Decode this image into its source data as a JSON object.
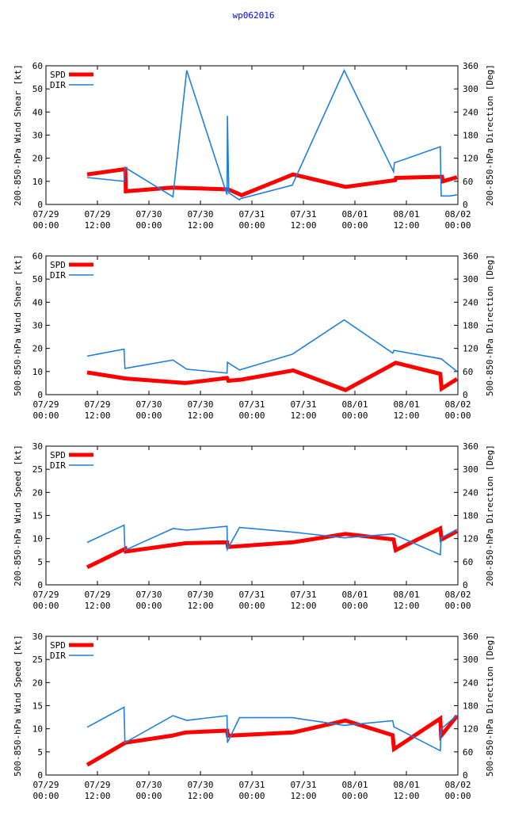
{
  "page_title": "wp062016",
  "colors": {
    "spd": "#ff0000",
    "dir": "#1e7fe0",
    "title": "#0000ff",
    "axis": "#000000"
  },
  "x_ticks": [
    {
      "date": "07/29",
      "time": "00:00"
    },
    {
      "date": "07/29",
      "time": "12:00"
    },
    {
      "date": "07/30",
      "time": "00:00"
    },
    {
      "date": "07/30",
      "time": "12:00"
    },
    {
      "date": "07/31",
      "time": "00:00"
    },
    {
      "date": "07/31",
      "time": "12:00"
    },
    {
      "date": "08/01",
      "time": "00:00"
    },
    {
      "date": "08/01",
      "time": "12:00"
    },
    {
      "date": "08/02",
      "time": "00:00"
    }
  ],
  "chart_data": [
    {
      "type": "line",
      "ylabel": "200-850-hPa Wind Shear [kt]",
      "y2label": "200-850-hPa Direction [Deg]",
      "xlim": [
        0,
        96
      ],
      "ylim": [
        0,
        60
      ],
      "y_ticks": [
        0,
        10,
        20,
        30,
        40,
        50,
        60
      ],
      "y2lim": [
        0,
        360
      ],
      "y2_ticks": [
        0,
        60,
        120,
        180,
        240,
        300,
        360
      ],
      "legend": [
        "SPD",
        "DIR"
      ],
      "series": [
        {
          "name": "SPD",
          "axis": "left",
          "x": [
            9.6,
            18.5,
            18.6,
            29.3,
            42.5,
            45.6,
            57.6,
            69.8,
            81.4,
            81.6,
            92.3,
            92.5,
            95.8
          ],
          "y": [
            13,
            15.3,
            5.7,
            7.3,
            6.5,
            4,
            13,
            7.6,
            10.5,
            11.5,
            12,
            10,
            11.8
          ]
        },
        {
          "name": "DIR",
          "axis": "right",
          "x": [
            9.6,
            18.2,
            18.4,
            29.6,
            32.8,
            42.2,
            42.3,
            42.6,
            45.1,
            45.3,
            57.4,
            69.5,
            81.0,
            81.2,
            91.9,
            92.1,
            94.1,
            95.8
          ],
          "y": [
            70,
            60,
            96,
            20,
            348,
            25,
            230,
            30,
            12,
            15,
            50,
            348,
            85,
            108,
            150,
            22,
            22,
            25
          ]
        }
      ]
    },
    {
      "type": "line",
      "ylabel": "500-850-hPa Wind Shear [kt]",
      "y2label": "500-850-hPa Direction [Deg]",
      "xlim": [
        0,
        96
      ],
      "ylim": [
        0,
        60
      ],
      "y_ticks": [
        0,
        10,
        20,
        30,
        40,
        50,
        60
      ],
      "y2lim": [
        0,
        360
      ],
      "y2_ticks": [
        0,
        60,
        120,
        180,
        240,
        300,
        360
      ],
      "legend": [
        "SPD",
        "DIR"
      ],
      "series": [
        {
          "name": "SPD",
          "axis": "left",
          "x": [
            9.6,
            18.5,
            32.5,
            42.2,
            42.5,
            45.6,
            57.6,
            69.8,
            81.5,
            91.9,
            92.2,
            95.8
          ],
          "y": [
            9.6,
            7,
            5,
            7.2,
            6,
            6.5,
            10.5,
            2,
            13.8,
            9,
            2.6,
            6.8
          ]
        },
        {
          "name": "DIR",
          "axis": "right",
          "x": [
            9.6,
            18.2,
            18.4,
            29.6,
            32.8,
            42.2,
            42.3,
            45.1,
            57.4,
            69.5,
            80.8,
            81.1,
            92.1,
            95.8
          ],
          "y": [
            100,
            118,
            68,
            90,
            66,
            56,
            84,
            64,
            105,
            194,
            108,
            115,
            93,
            60
          ]
        }
      ]
    },
    {
      "type": "line",
      "ylabel": "200-850-hPa Wind Speed [kt]",
      "y2label": "200-850-hPa Direction [Deg]",
      "xlim": [
        0,
        96
      ],
      "ylim": [
        0,
        30
      ],
      "y_ticks": [
        0,
        5,
        10,
        15,
        20,
        25,
        30
      ],
      "y2lim": [
        0,
        360
      ],
      "y2_ticks": [
        0,
        60,
        120,
        180,
        240,
        300,
        360
      ],
      "legend": [
        "SPD",
        "DIR"
      ],
      "series": [
        {
          "name": "SPD",
          "axis": "left",
          "x": [
            9.6,
            18.5,
            18.6,
            32.5,
            42.2,
            42.4,
            57.6,
            69.8,
            81.0,
            81.5,
            91.9,
            92.2,
            95.8
          ],
          "y": [
            3.8,
            7.8,
            7.2,
            9,
            9.2,
            8.2,
            9.2,
            11,
            9.8,
            7.5,
            12.2,
            9.8,
            11.6
          ]
        },
        {
          "name": "DIR",
          "axis": "right",
          "x": [
            9.6,
            18.2,
            18.4,
            29.6,
            32.8,
            42.2,
            42.3,
            45.1,
            57.4,
            69.5,
            80.8,
            91.9,
            92.1,
            95.8
          ],
          "y": [
            110,
            155,
            90,
            146,
            142,
            152,
            92,
            149,
            137,
            122,
            132,
            78,
            122,
            144
          ]
        }
      ]
    },
    {
      "type": "line",
      "ylabel": "500-850-hPa Wind Speed [kt]",
      "y2label": "500-850-hPa Direction [Deg]",
      "xlim": [
        0,
        96
      ],
      "ylim": [
        0,
        30
      ],
      "y_ticks": [
        0,
        5,
        10,
        15,
        20,
        25,
        30
      ],
      "y2lim": [
        0,
        360
      ],
      "y2_ticks": [
        0,
        60,
        120,
        180,
        240,
        300,
        360
      ],
      "legend": [
        "SPD",
        "DIR"
      ],
      "series": [
        {
          "name": "SPD",
          "axis": "left",
          "x": [
            9.6,
            18.5,
            29.3,
            32.5,
            42.2,
            42.4,
            57.6,
            69.8,
            80.8,
            81.1,
            91.9,
            92.1,
            95.8
          ],
          "y": [
            2.2,
            7,
            8.5,
            9.2,
            9.6,
            8.5,
            9.2,
            11.8,
            8.6,
            5.6,
            12.2,
            8.5,
            12.8
          ]
        },
        {
          "name": "DIR",
          "axis": "right",
          "x": [
            9.6,
            18.2,
            18.4,
            29.6,
            32.8,
            42.2,
            42.3,
            45.1,
            57.4,
            69.5,
            80.8,
            81.1,
            91.9,
            92.1,
            95.8
          ],
          "y": [
            124,
            176,
            84,
            154,
            142,
            154,
            84,
            149,
            149,
            129,
            141,
            125,
            63,
            120,
            155
          ]
        }
      ]
    }
  ]
}
